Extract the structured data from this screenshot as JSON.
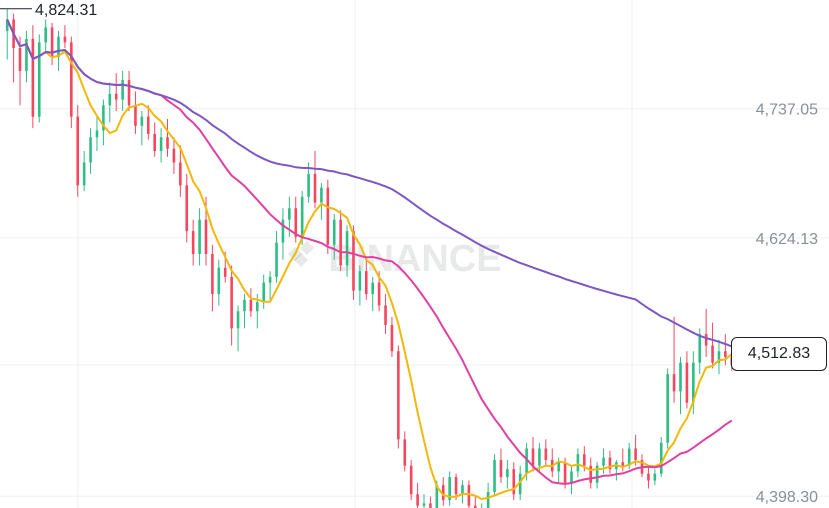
{
  "chart_data": {
    "type": "candlestick",
    "watermark": "BINANCE",
    "y_ticks": [
      "4,737.05",
      "4,624.13",
      "4,398.30"
    ],
    "y_tick_values": [
      4737.05,
      4624.13,
      4398.3
    ],
    "high_marker": "4,824.31",
    "high_value": 4824.31,
    "last_price": "4,512.83",
    "last_value": 4512.83,
    "ylim": [
      4388,
      4832
    ],
    "grid": true,
    "colors": {
      "up": "#2ebd85",
      "down": "#f6465d",
      "ma_fast": "#f0b90b",
      "ma_mid": "#e040a0",
      "ma_slow": "#7e57c2",
      "grid": "#eef0f2"
    },
    "candles": [
      [
        4805,
        4824,
        4780,
        4815
      ],
      [
        4815,
        4820,
        4760,
        4790
      ],
      [
        4790,
        4800,
        4740,
        4770
      ],
      [
        4770,
        4805,
        4760,
        4798
      ],
      [
        4798,
        4810,
        4720,
        4730
      ],
      [
        4730,
        4802,
        4725,
        4795
      ],
      [
        4795,
        4815,
        4785,
        4808
      ],
      [
        4808,
        4812,
        4775,
        4782
      ],
      [
        4782,
        4805,
        4770,
        4800
      ],
      [
        4800,
        4810,
        4790,
        4795
      ],
      [
        4795,
        4800,
        4720,
        4730
      ],
      [
        4730,
        4740,
        4660,
        4670
      ],
      [
        4670,
        4700,
        4665,
        4690
      ],
      [
        4690,
        4720,
        4680,
        4712
      ],
      [
        4712,
        4730,
        4700,
        4718
      ],
      [
        4718,
        4745,
        4705,
        4740
      ],
      [
        4740,
        4760,
        4725,
        4750
      ],
      [
        4750,
        4768,
        4735,
        4745
      ],
      [
        4745,
        4770,
        4735,
        4762
      ],
      [
        4762,
        4770,
        4735,
        4740
      ],
      [
        4740,
        4752,
        4715,
        4722
      ],
      [
        4722,
        4735,
        4705,
        4730
      ],
      [
        4730,
        4740,
        4710,
        4715
      ],
      [
        4715,
        4725,
        4695,
        4700
      ],
      [
        4700,
        4720,
        4690,
        4712
      ],
      [
        4712,
        4728,
        4695,
        4702
      ],
      [
        4702,
        4712,
        4680,
        4690
      ],
      [
        4690,
        4705,
        4660,
        4670
      ],
      [
        4670,
        4680,
        4620,
        4630
      ],
      [
        4630,
        4640,
        4600,
        4610
      ],
      [
        4610,
        4650,
        4600,
        4640
      ],
      [
        4640,
        4660,
        4600,
        4610
      ],
      [
        4610,
        4618,
        4560,
        4575
      ],
      [
        4575,
        4605,
        4565,
        4598
      ],
      [
        4598,
        4612,
        4585,
        4590
      ],
      [
        4590,
        4600,
        4530,
        4545
      ],
      [
        4545,
        4565,
        4525,
        4560
      ],
      [
        4560,
        4575,
        4545,
        4570
      ],
      [
        4570,
        4580,
        4555,
        4560
      ],
      [
        4560,
        4575,
        4545,
        4568
      ],
      [
        4568,
        4592,
        4562,
        4585
      ],
      [
        4585,
        4595,
        4570,
        4590
      ],
      [
        4590,
        4630,
        4585,
        4620
      ],
      [
        4620,
        4650,
        4605,
        4640
      ],
      [
        4640,
        4660,
        4625,
        4650
      ],
      [
        4650,
        4660,
        4620,
        4625
      ],
      [
        4625,
        4665,
        4618,
        4660
      ],
      [
        4660,
        4690,
        4655,
        4680
      ],
      [
        4680,
        4700,
        4650,
        4655
      ],
      [
        4655,
        4672,
        4640,
        4668
      ],
      [
        4668,
        4675,
        4610,
        4618
      ],
      [
        4618,
        4645,
        4605,
        4640
      ],
      [
        4640,
        4648,
        4595,
        4600
      ],
      [
        4600,
        4635,
        4590,
        4630
      ],
      [
        4630,
        4635,
        4570,
        4578
      ],
      [
        4578,
        4600,
        4565,
        4595
      ],
      [
        4595,
        4605,
        4570,
        4575
      ],
      [
        4575,
        4590,
        4560,
        4585
      ],
      [
        4585,
        4595,
        4560,
        4565
      ],
      [
        4565,
        4575,
        4540,
        4548
      ],
      [
        4548,
        4555,
        4520,
        4525
      ],
      [
        4525,
        4530,
        4440,
        4448
      ],
      [
        4448,
        4455,
        4420,
        4425
      ],
      [
        4425,
        4430,
        4395,
        4400
      ],
      [
        4400,
        4410,
        4385,
        4390
      ],
      [
        4390,
        4400,
        4380,
        4392
      ],
      [
        4392,
        4398,
        4380,
        4385
      ],
      [
        4385,
        4412,
        4382,
        4408
      ],
      [
        4408,
        4415,
        4390,
        4395
      ],
      [
        4395,
        4420,
        4390,
        4415
      ],
      [
        4415,
        4418,
        4395,
        4400
      ],
      [
        4400,
        4412,
        4392,
        4408
      ],
      [
        4408,
        4412,
        4385,
        4390
      ],
      [
        4390,
        4398,
        4370,
        4375
      ],
      [
        4375,
        4392,
        4370,
        4388
      ],
      [
        4388,
        4410,
        4385,
        4402
      ],
      [
        4402,
        4435,
        4398,
        4430
      ],
      [
        4430,
        4440,
        4410,
        4415
      ],
      [
        4415,
        4430,
        4405,
        4422
      ],
      [
        4422,
        4428,
        4395,
        4400
      ],
      [
        4400,
        4425,
        4395,
        4418
      ],
      [
        4418,
        4445,
        4412,
        4440
      ],
      [
        4440,
        4450,
        4420,
        4425
      ],
      [
        4425,
        4445,
        4420,
        4440
      ],
      [
        4440,
        4448,
        4425,
        4430
      ],
      [
        4430,
        4440,
        4415,
        4420
      ],
      [
        4420,
        4432,
        4410,
        4428
      ],
      [
        4428,
        4432,
        4405,
        4410
      ],
      [
        4410,
        4425,
        4400,
        4420
      ],
      [
        4420,
        4440,
        4415,
        4435
      ],
      [
        4435,
        4442,
        4420,
        4425
      ],
      [
        4425,
        4432,
        4405,
        4410
      ],
      [
        4410,
        4428,
        4405,
        4425
      ],
      [
        4425,
        4440,
        4418,
        4432
      ],
      [
        4432,
        4438,
        4418,
        4422
      ],
      [
        4422,
        4430,
        4412,
        4428
      ],
      [
        4428,
        4440,
        4420,
        4425
      ],
      [
        4425,
        4445,
        4422,
        4440
      ],
      [
        4440,
        4452,
        4425,
        4430
      ],
      [
        4430,
        4435,
        4415,
        4418
      ],
      [
        4418,
        4425,
        4405,
        4412
      ],
      [
        4412,
        4422,
        4408,
        4418
      ],
      [
        4418,
        4450,
        4415,
        4445
      ],
      [
        4445,
        4510,
        4440,
        4505
      ],
      [
        4505,
        4555,
        4480,
        4490
      ],
      [
        4490,
        4520,
        4470,
        4515
      ],
      [
        4515,
        4525,
        4475,
        4480
      ],
      [
        4480,
        4525,
        4470,
        4515
      ],
      [
        4515,
        4545,
        4505,
        4540
      ],
      [
        4540,
        4562,
        4520,
        4530
      ],
      [
        4530,
        4550,
        4510,
        4515
      ],
      [
        4515,
        4535,
        4505,
        4525
      ],
      [
        4525,
        4540,
        4513,
        4520
      ],
      [
        4520,
        4530,
        4508,
        4513
      ]
    ]
  }
}
